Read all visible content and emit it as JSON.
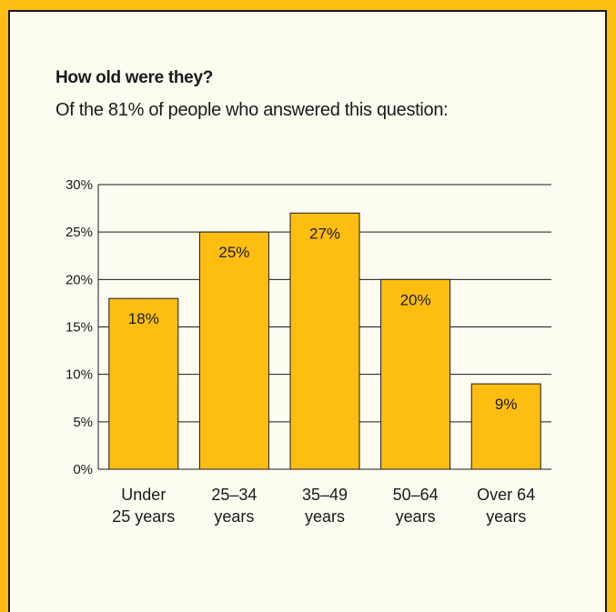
{
  "header": {
    "title": "How old were they?",
    "subtitle": "Of the 81% of people who answered this question:"
  },
  "colors": {
    "background": "#FDBE11",
    "card": "#FDFCF1",
    "bar": "#FDBE11",
    "ink": "#1a1a1a"
  },
  "chart_data": {
    "type": "bar",
    "categories": [
      [
        "Under",
        "25 years"
      ],
      [
        "25–34",
        "years"
      ],
      [
        "35–49",
        "years"
      ],
      [
        "50–64",
        "years"
      ],
      [
        "Over 64",
        "years"
      ]
    ],
    "values": [
      18,
      25,
      27,
      20,
      9
    ],
    "data_labels": [
      "18%",
      "25%",
      "27%",
      "20%",
      "9%"
    ],
    "ylim": [
      0,
      30
    ],
    "y_ticks": [
      0,
      5,
      10,
      15,
      20,
      25,
      30
    ],
    "y_tick_labels": [
      "0%",
      "5%",
      "10%",
      "15%",
      "20%",
      "25%",
      "30%"
    ],
    "grid": true,
    "legend": "none"
  }
}
